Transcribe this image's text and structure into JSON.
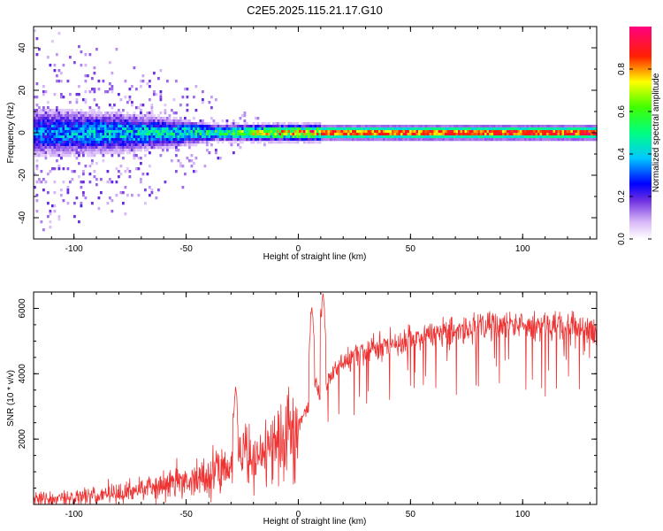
{
  "figure": {
    "title": "C2E5.2025.115.21.17.G10"
  },
  "chart_data": [
    {
      "type": "heatmap",
      "xlabel": "Height of straight line (km)",
      "ylabel": "Frequency (Hz)",
      "xlim": [
        -118,
        133
      ],
      "ylim": [
        -50,
        50
      ],
      "xticks": [
        "-100",
        "-50",
        "0",
        "50",
        "100"
      ],
      "yticks": [
        "-40",
        "-20",
        "0",
        "20",
        "40"
      ],
      "colorbar": {
        "label": "Normalized spectral amplitude",
        "range": [
          0,
          1
        ],
        "ticks": [
          "0.0",
          "0.2",
          "0.4",
          "0.6",
          "0.8"
        ]
      },
      "ridge_frequency_hz": 0,
      "spread_profile": [
        {
          "x": -118,
          "spread_hz": 50,
          "peak": 0.35
        },
        {
          "x": -80,
          "spread_hz": 40,
          "peak": 0.45
        },
        {
          "x": -50,
          "spread_hz": 25,
          "peak": 0.5
        },
        {
          "x": -30,
          "spread_hz": 12,
          "peak": 0.6
        },
        {
          "x": -10,
          "spread_hz": 5,
          "peak": 0.8
        },
        {
          "x": 10,
          "spread_hz": 3,
          "peak": 0.9
        },
        {
          "x": 133,
          "spread_hz": 3,
          "peak": 0.95
        }
      ]
    },
    {
      "type": "line",
      "xlabel": "Height of straight line (km)",
      "ylabel": "SNR (10 * v/v)",
      "xlim": [
        -118,
        133
      ],
      "ylim": [
        0,
        6500
      ],
      "xticks": [
        "-100",
        "-50",
        "0",
        "50",
        "100"
      ],
      "yticks": [
        "2000",
        "4000",
        "6000"
      ],
      "color": "#ee3333",
      "trend": {
        "x": [
          -118,
          -100,
          -80,
          -60,
          -40,
          -30,
          -25,
          -20,
          -10,
          0,
          5,
          8,
          10,
          12,
          15,
          20,
          30,
          40,
          60,
          80,
          100,
          120,
          133
        ],
        "y": [
          150,
          200,
          350,
          600,
          900,
          1200,
          1700,
          1400,
          1800,
          2500,
          3000,
          3700,
          3300,
          3600,
          4000,
          4400,
          4700,
          4900,
          5200,
          5400,
          5500,
          5450,
          5400
        ]
      },
      "spikes": [
        {
          "x": -28,
          "y": 3600
        },
        {
          "x": 6,
          "y": 6100
        },
        {
          "x": 11,
          "y": 6500
        }
      ]
    }
  ]
}
